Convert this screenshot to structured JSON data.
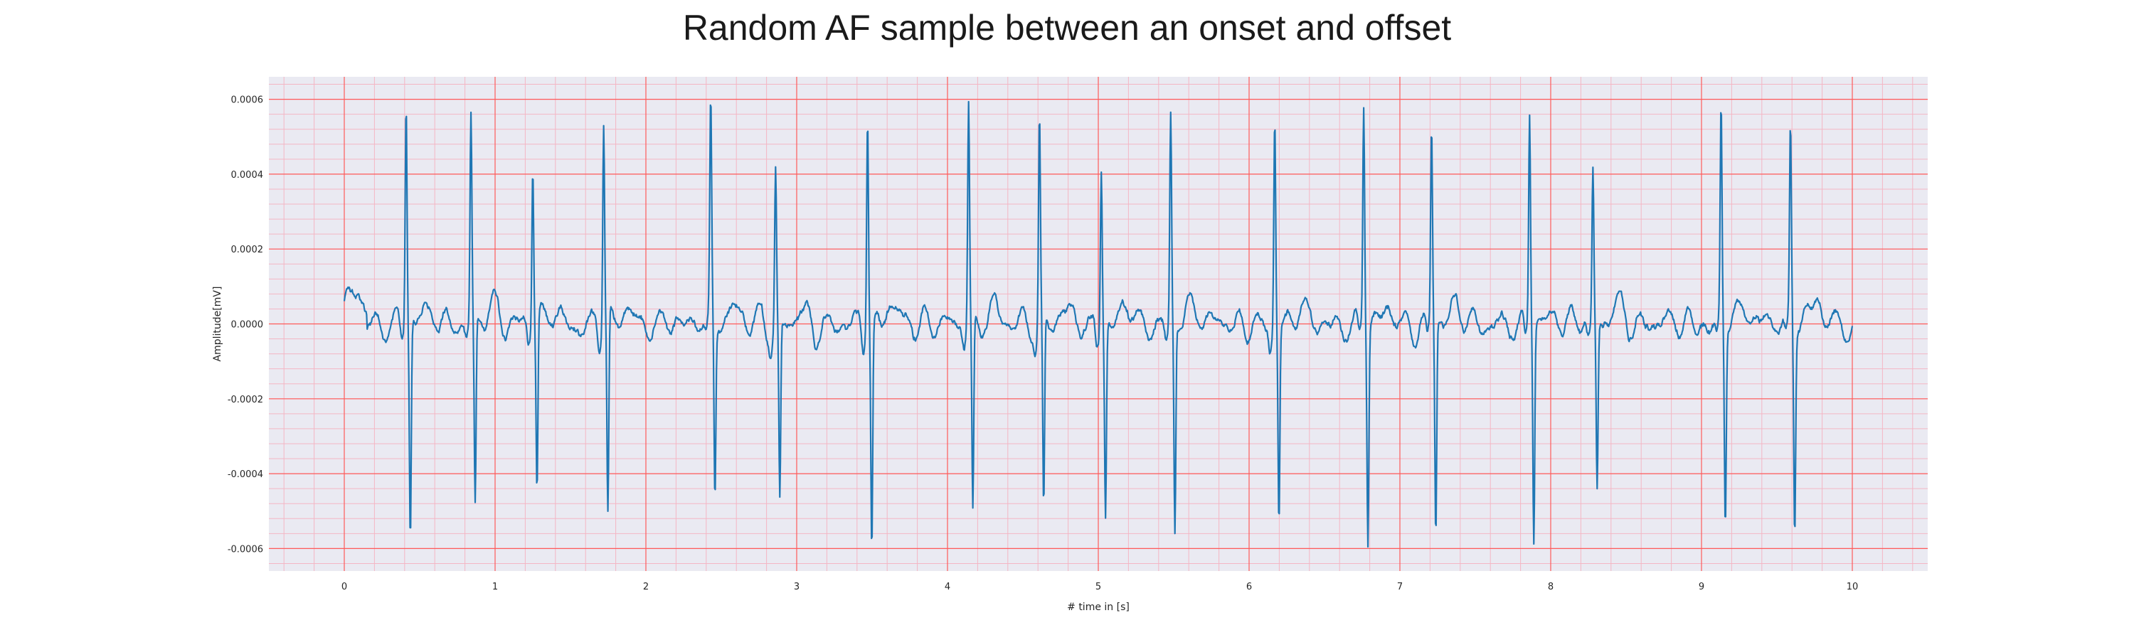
{
  "chart_data": {
    "type": "line",
    "title": "Random AF sample between an onset and offset",
    "xlabel": "# time in [s]",
    "ylabel": "Amplitude[mV]",
    "xlim": [
      -0.5,
      10.5
    ],
    "ylim": [
      -0.00066,
      0.00066
    ],
    "xticks": [
      0,
      1,
      2,
      3,
      4,
      5,
      6,
      7,
      8,
      9,
      10
    ],
    "xtick_labels": [
      "0",
      "1",
      "2",
      "3",
      "4",
      "5",
      "6",
      "7",
      "8",
      "9",
      "10"
    ],
    "yticks": [
      -0.0006,
      -0.0004,
      -0.0002,
      0.0,
      0.0002,
      0.0004,
      0.0006
    ],
    "ytick_labels": [
      "-0.0006",
      "-0.0004",
      "-0.0002",
      "0.0000",
      "0.0002",
      "0.0004",
      "0.0006"
    ],
    "grid": true,
    "colors": {
      "line": "#1f77b4",
      "plot_background": "#eaeaf2",
      "major_grid": "#ff5a5a",
      "minor_grid": "#f4b6c4"
    },
    "series": [
      {
        "peaks": [
          {
            "t": 0.41,
            "up": 0.0006,
            "down": -0.00056
          },
          {
            "t": 0.84,
            "up": 0.000545,
            "down": -0.00049
          },
          {
            "t": 1.25,
            "up": 0.000445,
            "down": -0.000455
          },
          {
            "t": 1.72,
            "up": 0.00056,
            "down": -0.000535
          },
          {
            "t": 2.43,
            "up": 0.000565,
            "down": -0.000475
          },
          {
            "t": 2.86,
            "up": 0.00041,
            "down": -0.000475
          },
          {
            "t": 3.47,
            "up": 0.000595,
            "down": -0.0006
          },
          {
            "t": 4.14,
            "up": 0.000595,
            "down": -0.000525
          },
          {
            "t": 4.61,
            "up": 0.00056,
            "down": -0.000515
          },
          {
            "t": 5.02,
            "up": 0.000455,
            "down": -0.000505
          },
          {
            "t": 5.48,
            "up": 0.000555,
            "down": -0.000565
          },
          {
            "t": 6.17,
            "up": 0.000565,
            "down": -0.00052
          },
          {
            "t": 6.76,
            "up": 0.000595,
            "down": -0.000565
          },
          {
            "t": 7.21,
            "up": 0.00052,
            "down": -0.000565
          },
          {
            "t": 7.86,
            "up": 0.000565,
            "down": -0.00058
          },
          {
            "t": 8.28,
            "up": 0.00042,
            "down": -0.00043
          },
          {
            "t": 9.13,
            "up": 0.00058,
            "down": -0.000515
          },
          {
            "t": 9.59,
            "up": 0.00052,
            "down": -0.000545
          }
        ]
      }
    ]
  }
}
